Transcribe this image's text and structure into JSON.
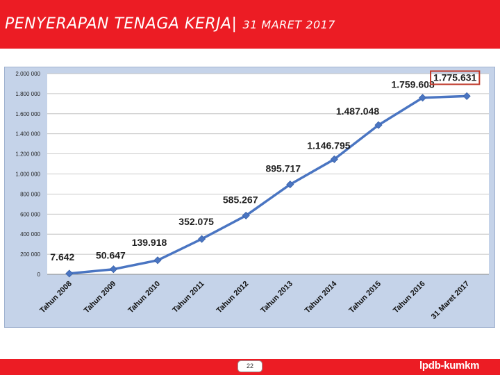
{
  "header": {
    "title": "PENYERAPAN TENAGA KERJA|",
    "date": "31 MARET 2017"
  },
  "footer": {
    "page_number": "22",
    "brand": "lpdb-kumkm"
  },
  "colors": {
    "header_bg": "#ec1c24",
    "chart_bg": "#c5d3e9",
    "plot_bg": "#ffffff",
    "line": "#4a75c2",
    "highlight_box": "#c0392b"
  },
  "chart_data": {
    "type": "line",
    "categories": [
      "Tahun 2008",
      "Tahun 2009",
      "Tahun 2010",
      "Tahun 2011",
      "Tahun 2012",
      "Tahun 2013",
      "Tahun 2014",
      "Tahun 2015",
      "Tahun 2016",
      "31 Maret 2017"
    ],
    "values": [
      7642,
      50647,
      139918,
      352075,
      585267,
      895717,
      1146795,
      1487048,
      1759608,
      1775631
    ],
    "data_labels": [
      "7.642",
      "50.647",
      "139.918",
      "352.075",
      "585.267",
      "895.717",
      "1.146.795",
      "1.487.048",
      "1.759.608",
      "1.775.631"
    ],
    "y_ticks": [
      "0",
      "200 000",
      "400 000",
      "600 000",
      "800 000",
      "1.000 000",
      "1.200 000",
      "1.400 000",
      "1.600 000",
      "1.800 000",
      "2.000 000"
    ],
    "ylim": [
      0,
      2000000
    ],
    "highlighted_index": 9,
    "grid": true,
    "title": "",
    "xlabel": "",
    "ylabel": ""
  }
}
